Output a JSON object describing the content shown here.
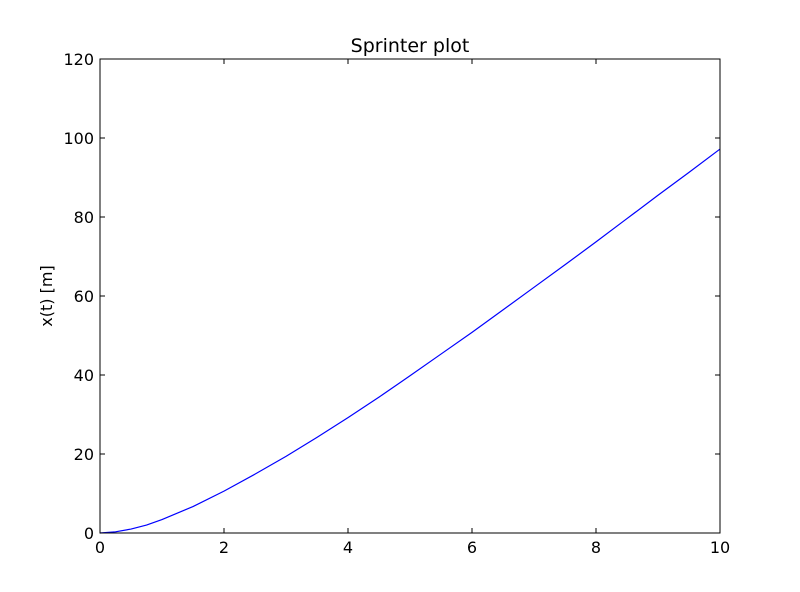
{
  "chart_data": {
    "type": "line",
    "title": "Sprinter plot",
    "xlabel": "",
    "ylabel": "x(t) [m]",
    "xlim": [
      0,
      10
    ],
    "ylim": [
      0,
      120
    ],
    "xticks": [
      0,
      2,
      4,
      6,
      8,
      10
    ],
    "yticks": [
      0,
      20,
      40,
      60,
      80,
      100,
      120
    ],
    "grid": false,
    "series": [
      {
        "color": "#0000ff",
        "x": [
          0,
          0.25,
          0.5,
          0.75,
          1,
          1.5,
          2,
          2.5,
          3,
          3.5,
          4,
          4.5,
          5,
          5.5,
          6,
          6.5,
          7,
          7.5,
          8,
          8.5,
          9,
          9.5,
          10
        ],
        "y": [
          0,
          0.3,
          1.0,
          2.0,
          3.4,
          6.7,
          10.6,
          14.9,
          19.4,
          24.2,
          29.2,
          34.4,
          39.8,
          45.3,
          50.8,
          56.5,
          62.2,
          67.9,
          73.7,
          79.6,
          85.5,
          91.3,
          97.2
        ]
      }
    ]
  }
}
